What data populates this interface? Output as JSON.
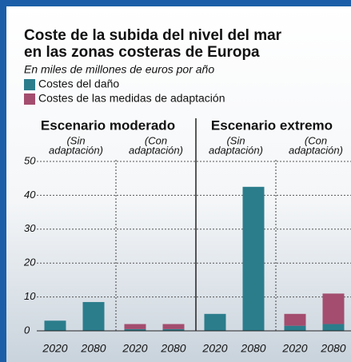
{
  "chart_data": {
    "type": "stacked-bar",
    "title": [
      "Coste de la subida del nivel del mar",
      "en las zonas costeras de Europa"
    ],
    "subtitle": "En miles de millones de euros por año",
    "scenarios": [
      {
        "name": "Escenario moderado",
        "groups": [
          [
            "(Sin",
            "adaptación)"
          ],
          [
            "(Con",
            "adaptación)"
          ]
        ]
      },
      {
        "name": "Escenario extremo",
        "groups": [
          [
            "(Sin",
            "adaptación)"
          ],
          [
            "(Con",
            "adaptación)"
          ]
        ]
      }
    ],
    "categories": [
      "2020",
      "2080",
      "2020",
      "2080",
      "2020",
      "2080",
      "2020",
      "2080"
    ],
    "series": [
      {
        "name": "Costes del daño",
        "color": "#2b7d8c",
        "values": [
          3,
          8.5,
          0.5,
          0.5,
          5,
          42.5,
          1.5,
          2
        ]
      },
      {
        "name": "Costes de las medidas de adaptación",
        "color": "#a44d6e",
        "values": [
          0,
          0,
          1.5,
          1.5,
          0,
          0,
          3.5,
          9
        ]
      }
    ],
    "ylim": [
      0,
      50
    ],
    "yticks": [
      0,
      10,
      20,
      30,
      40,
      50
    ],
    "grid": true
  }
}
